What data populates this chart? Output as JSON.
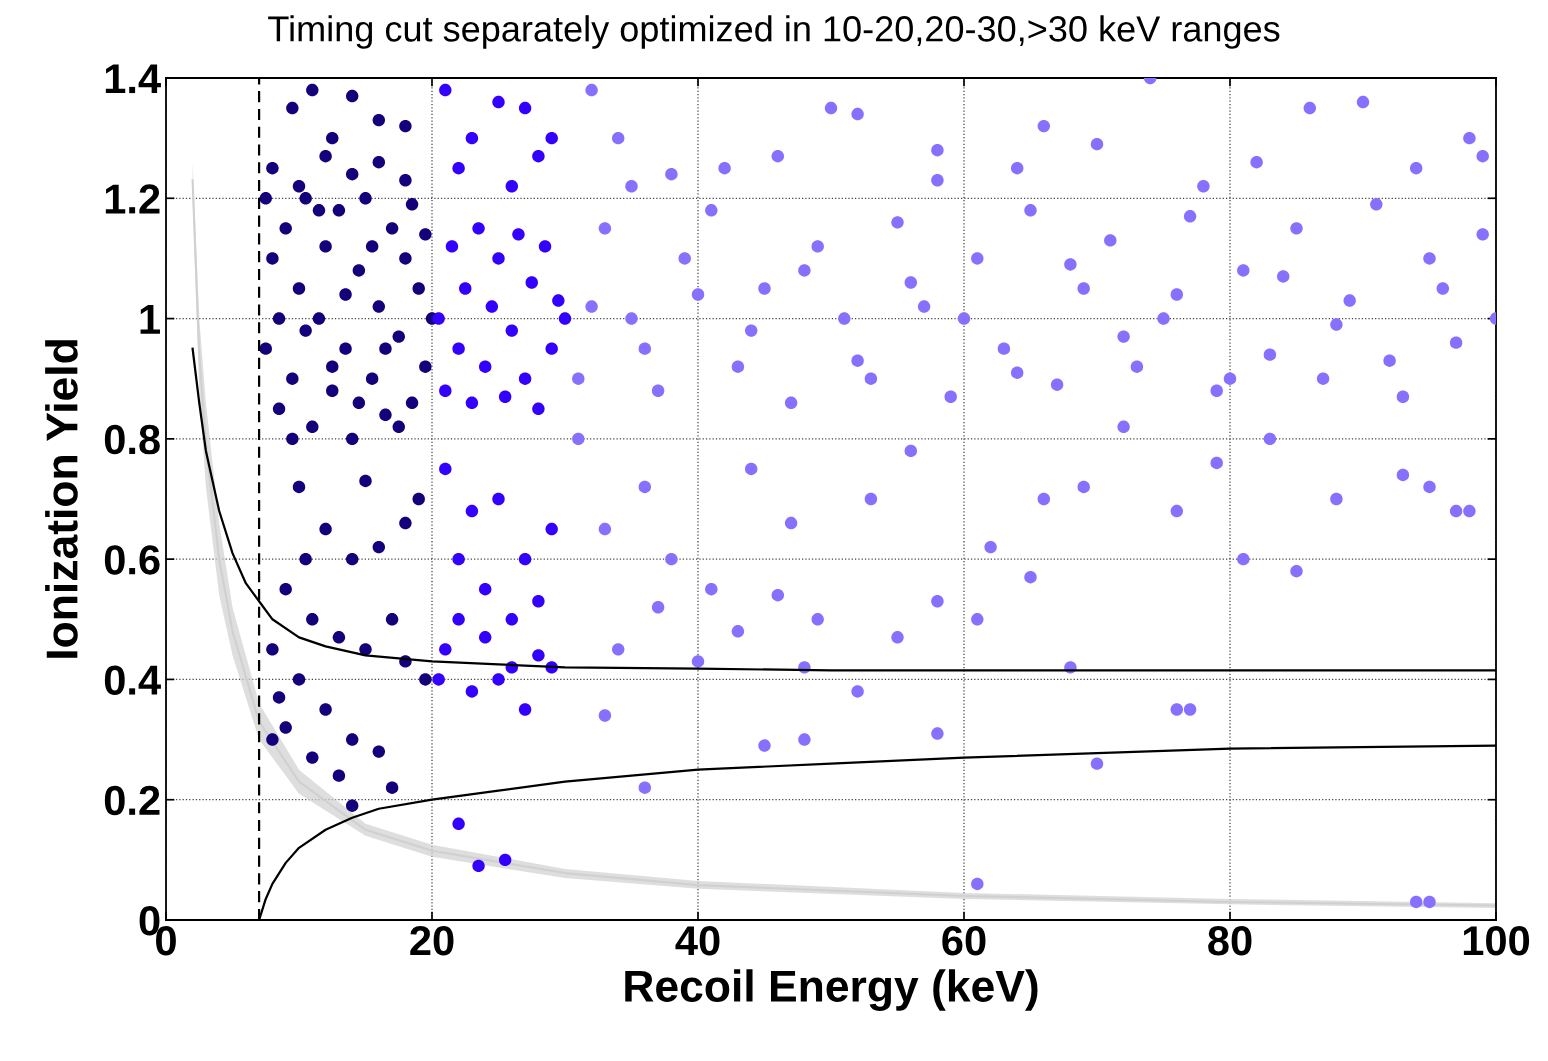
{
  "chart_data": {
    "type": "scatter",
    "title": "Timing cut separately optimized in 10-20,20-30,>30 keV ranges",
    "xlabel": "Recoil Energy (keV)",
    "ylabel": "Ionization Yield",
    "xlim": [
      0,
      100
    ],
    "ylim": [
      0,
      1.4
    ],
    "xticks": [
      0,
      20,
      40,
      60,
      80,
      100
    ],
    "yticks": [
      0,
      0.2,
      0.4,
      0.6,
      0.8,
      1,
      1.2,
      1.4
    ],
    "grid": true,
    "ref_lines": [
      {
        "axis": "x",
        "value": 7,
        "color": "#000000",
        "line_style": "dashed"
      }
    ],
    "series": [
      {
        "type": "line",
        "marker": "none",
        "color": "#d0d0d0",
        "x": [
          2,
          2.5,
          3,
          4,
          5,
          7,
          10,
          15,
          20,
          30,
          40,
          60,
          80,
          100
        ],
        "values": [
          1.23,
          0.94,
          0.79,
          0.6,
          0.48,
          0.33,
          0.23,
          0.15,
          0.115,
          0.078,
          0.058,
          0.04,
          0.03,
          0.024
        ],
        "lower": [
          1.2,
          0.88,
          0.72,
          0.54,
          0.44,
          0.3,
          0.21,
          0.14,
          0.105,
          0.07,
          0.052,
          0.035,
          0.026,
          0.02
        ],
        "upper": [
          1.26,
          1.0,
          0.86,
          0.66,
          0.52,
          0.36,
          0.25,
          0.16,
          0.125,
          0.085,
          0.065,
          0.045,
          0.035,
          0.028
        ]
      },
      {
        "type": "line",
        "marker": "none",
        "color": "#000000",
        "x": [
          2,
          2.5,
          3,
          4,
          5,
          6,
          7,
          8,
          10,
          12,
          15,
          20,
          25,
          30,
          40,
          50,
          70,
          100
        ],
        "values": [
          0.95,
          0.86,
          0.78,
          0.68,
          0.61,
          0.56,
          0.53,
          0.5,
          0.47,
          0.455,
          0.44,
          0.43,
          0.425,
          0.42,
          0.418,
          0.415,
          0.415,
          0.415
        ]
      },
      {
        "type": "line",
        "marker": "none",
        "color": "#000000",
        "x": [
          7,
          7.5,
          8,
          9,
          10,
          12,
          14,
          16,
          20,
          25,
          30,
          40,
          50,
          60,
          80,
          100
        ],
        "values": [
          0,
          0.035,
          0.06,
          0.095,
          0.12,
          0.15,
          0.17,
          0.185,
          0.2,
          0.215,
          0.23,
          0.25,
          0.26,
          0.27,
          0.285,
          0.29
        ]
      },
      {
        "marker": "circle",
        "color": "#14007a",
        "x": [
          7.5,
          8,
          8.5,
          9,
          9.5,
          10,
          10.5,
          11,
          11.5,
          12,
          12.5,
          13,
          13.5,
          14,
          14.5,
          15,
          15.5,
          16,
          16.5,
          17,
          17.5,
          18,
          18.5,
          19,
          19.5,
          20,
          7.5,
          8.5,
          9.5,
          10.5,
          11.5,
          12.5,
          13.5,
          14.5,
          15.5,
          16.5,
          17.5,
          18.5,
          19.5,
          8,
          10,
          12,
          14,
          16,
          18,
          9.5,
          11,
          12.5,
          14,
          16,
          18,
          10,
          12,
          14,
          9,
          11,
          13,
          15,
          17,
          8,
          10,
          12,
          14,
          16,
          17,
          9,
          11,
          13,
          14,
          18,
          19.5,
          8,
          8.5,
          10.5,
          16,
          18,
          19,
          15
        ],
        "values": [
          0.95,
          1.1,
          0.85,
          1.15,
          0.9,
          1.05,
          1.2,
          0.82,
          1.0,
          1.12,
          0.88,
          1.18,
          0.95,
          0.8,
          1.08,
          1.2,
          0.9,
          1.02,
          0.84,
          1.15,
          0.97,
          1.1,
          0.86,
          1.05,
          0.92,
          1.0,
          1.2,
          1.0,
          0.8,
          0.98,
          1.18,
          0.92,
          1.04,
          0.86,
          1.12,
          0.95,
          0.82,
          1.19,
          1.14,
          1.25,
          1.22,
          1.27,
          1.24,
          1.26,
          1.23,
          1.35,
          1.38,
          1.3,
          1.37,
          1.33,
          1.32,
          0.72,
          0.65,
          0.6,
          0.55,
          0.5,
          0.47,
          0.45,
          0.5,
          0.45,
          0.4,
          0.35,
          0.3,
          0.28,
          0.22,
          0.32,
          0.27,
          0.24,
          0.19,
          0.43,
          0.4,
          0.3,
          0.37,
          0.6,
          0.62,
          0.66,
          0.7,
          0.73
        ]
      },
      {
        "marker": "circle",
        "color": "#3300ff",
        "x": [
          20.5,
          21,
          21.5,
          22,
          22.5,
          23,
          23.5,
          24,
          24.5,
          25,
          25.5,
          26,
          26.5,
          27,
          27.5,
          28,
          28.5,
          29,
          29.5,
          30,
          21,
          23,
          25,
          27,
          29,
          22,
          26,
          28,
          21,
          23,
          25,
          27,
          29,
          22,
          24,
          26,
          28,
          21,
          23,
          25,
          27,
          29,
          22,
          24,
          26,
          28,
          22,
          25.5,
          23.5,
          20.5
        ],
        "values": [
          1.0,
          0.88,
          1.12,
          0.95,
          1.05,
          0.86,
          1.15,
          0.92,
          1.02,
          1.1,
          0.87,
          0.98,
          1.14,
          0.9,
          1.06,
          0.85,
          1.12,
          0.95,
          1.03,
          1.0,
          1.38,
          1.3,
          1.36,
          1.35,
          1.3,
          1.25,
          1.22,
          1.27,
          0.75,
          0.68,
          0.7,
          0.6,
          0.65,
          0.6,
          0.55,
          0.5,
          0.53,
          0.45,
          0.38,
          0.4,
          0.35,
          0.42,
          0.5,
          0.47,
          0.42,
          0.44,
          0.16,
          0.1,
          0.09,
          0.4
        ]
      },
      {
        "marker": "circle",
        "color": "#8870ff",
        "x": [
          31,
          33,
          35,
          37,
          39,
          41,
          43,
          45,
          47,
          49,
          51,
          53,
          55,
          57,
          59,
          61,
          63,
          65,
          67,
          69,
          71,
          73,
          75,
          77,
          79,
          81,
          83,
          85,
          87,
          89,
          91,
          93,
          95,
          97,
          99,
          32,
          36,
          40,
          44,
          48,
          52,
          56,
          60,
          64,
          68,
          72,
          76,
          80,
          84,
          88,
          92,
          96,
          100,
          34,
          42,
          50,
          58,
          66,
          74,
          82,
          90,
          98,
          32,
          35,
          38,
          46,
          52,
          58,
          64,
          70,
          78,
          86,
          94,
          99,
          31,
          33,
          36,
          38,
          41,
          44,
          47,
          49,
          53,
          56,
          62,
          66,
          69,
          72,
          76,
          79,
          83,
          88,
          93,
          97,
          34,
          37,
          40,
          43,
          46,
          48,
          55,
          58,
          61,
          65,
          68,
          77,
          81,
          85,
          95,
          98,
          33,
          36,
          45,
          48,
          52,
          58,
          61,
          70,
          76,
          94,
          95
        ],
        "values": [
          0.9,
          1.15,
          1.0,
          0.88,
          1.1,
          1.18,
          0.92,
          1.05,
          0.86,
          1.12,
          1.0,
          0.9,
          1.16,
          1.02,
          0.87,
          1.1,
          0.95,
          1.18,
          0.89,
          1.05,
          1.13,
          0.92,
          1.0,
          1.17,
          0.88,
          1.08,
          0.94,
          1.15,
          0.9,
          1.03,
          1.19,
          0.87,
          1.1,
          0.96,
          1.14,
          1.02,
          0.95,
          1.04,
          0.98,
          1.08,
          0.93,
          1.06,
          1.0,
          0.91,
          1.09,
          0.97,
          1.04,
          0.9,
          1.07,
          0.99,
          0.93,
          1.05,
          1.0,
          1.3,
          1.25,
          1.35,
          1.28,
          1.32,
          1.4,
          1.26,
          1.36,
          1.3,
          1.38,
          1.22,
          1.24,
          1.27,
          1.34,
          1.23,
          1.25,
          1.29,
          1.22,
          1.35,
          1.25,
          1.27,
          0.8,
          0.65,
          0.72,
          0.6,
          0.55,
          0.75,
          0.66,
          0.5,
          0.7,
          0.78,
          0.62,
          0.7,
          0.72,
          0.82,
          0.68,
          0.76,
          0.8,
          0.7,
          0.74,
          0.68,
          0.45,
          0.52,
          0.43,
          0.48,
          0.54,
          0.42,
          0.47,
          0.53,
          0.5,
          0.57,
          0.42,
          0.35,
          0.6,
          0.58,
          0.72,
          0.68,
          0.34,
          0.22,
          0.29,
          0.3,
          0.38,
          0.31,
          0.06,
          0.26,
          0.35,
          0.03,
          0.03
        ]
      }
    ]
  }
}
